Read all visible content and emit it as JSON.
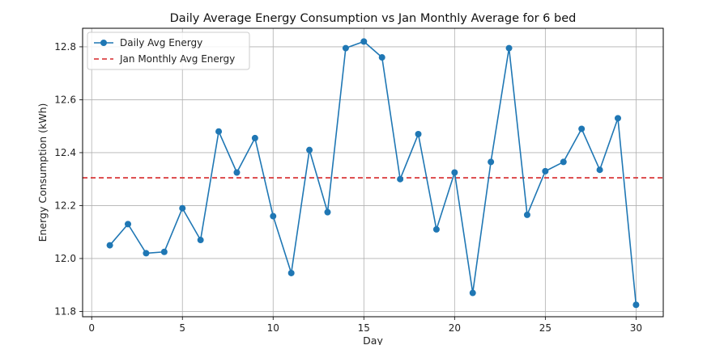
{
  "chart_data": {
    "type": "line",
    "title": "Daily Average Energy Consumption vs Jan Monthly Average for 6 bed",
    "xlabel": "Day",
    "ylabel": "Energy Consumption (kWh)",
    "xlim": [
      -0.5,
      31.5
    ],
    "ylim": [
      11.78,
      12.87
    ],
    "xticks": [
      0,
      5,
      10,
      15,
      20,
      25,
      30
    ],
    "yticks": [
      11.8,
      12.0,
      12.2,
      12.4,
      12.6,
      12.8
    ],
    "grid": true,
    "legend_position": "top-left",
    "x": [
      1,
      2,
      3,
      4,
      5,
      6,
      7,
      8,
      9,
      10,
      11,
      12,
      13,
      14,
      15,
      16,
      17,
      18,
      19,
      20,
      21,
      22,
      23,
      24,
      25,
      26,
      27,
      28,
      29,
      30
    ],
    "series": [
      {
        "name": "Daily Avg Energy",
        "color": "#1f77b4",
        "style": "line-with-circle-markers",
        "values": [
          12.05,
          12.13,
          12.02,
          12.025,
          12.19,
          12.07,
          12.48,
          12.325,
          12.455,
          12.16,
          11.945,
          12.41,
          12.175,
          12.795,
          12.82,
          12.76,
          12.3,
          12.47,
          12.11,
          12.325,
          11.87,
          12.365,
          12.795,
          12.165,
          12.33,
          12.365,
          12.49,
          12.335,
          12.53,
          11.825
        ]
      },
      {
        "name": "Jan Monthly Avg Energy",
        "color": "#d62728",
        "style": "dashed-horizontal-line",
        "value": 12.305
      }
    ]
  }
}
